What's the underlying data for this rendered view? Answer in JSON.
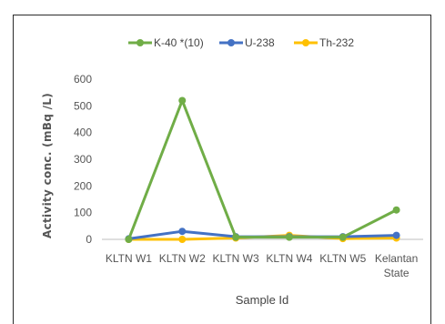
{
  "chart_data": {
    "type": "line",
    "categories": [
      "KLTN W1",
      "KLTN W2",
      "KLTN W3",
      "KLTN W4",
      "KLTN W5",
      "Kelantan State"
    ],
    "series": [
      {
        "name": "K-40 *(10)",
        "color": "#70ad47",
        "values": [
          0,
          520,
          8,
          8,
          8,
          110
        ]
      },
      {
        "name": "U-238",
        "color": "#4472c4",
        "values": [
          2,
          30,
          10,
          10,
          10,
          15
        ]
      },
      {
        "name": "Th-232",
        "color": "#ffc000",
        "values": [
          0,
          0,
          5,
          15,
          3,
          5
        ]
      }
    ],
    "xlabel": "Sample Id",
    "ylabel": "Activity  conc.  (mBq /L)",
    "ylim": [
      0,
      600
    ],
    "yticks": [
      0,
      100,
      200,
      300,
      400,
      500,
      600
    ],
    "grid": false,
    "legend_position": "top"
  }
}
